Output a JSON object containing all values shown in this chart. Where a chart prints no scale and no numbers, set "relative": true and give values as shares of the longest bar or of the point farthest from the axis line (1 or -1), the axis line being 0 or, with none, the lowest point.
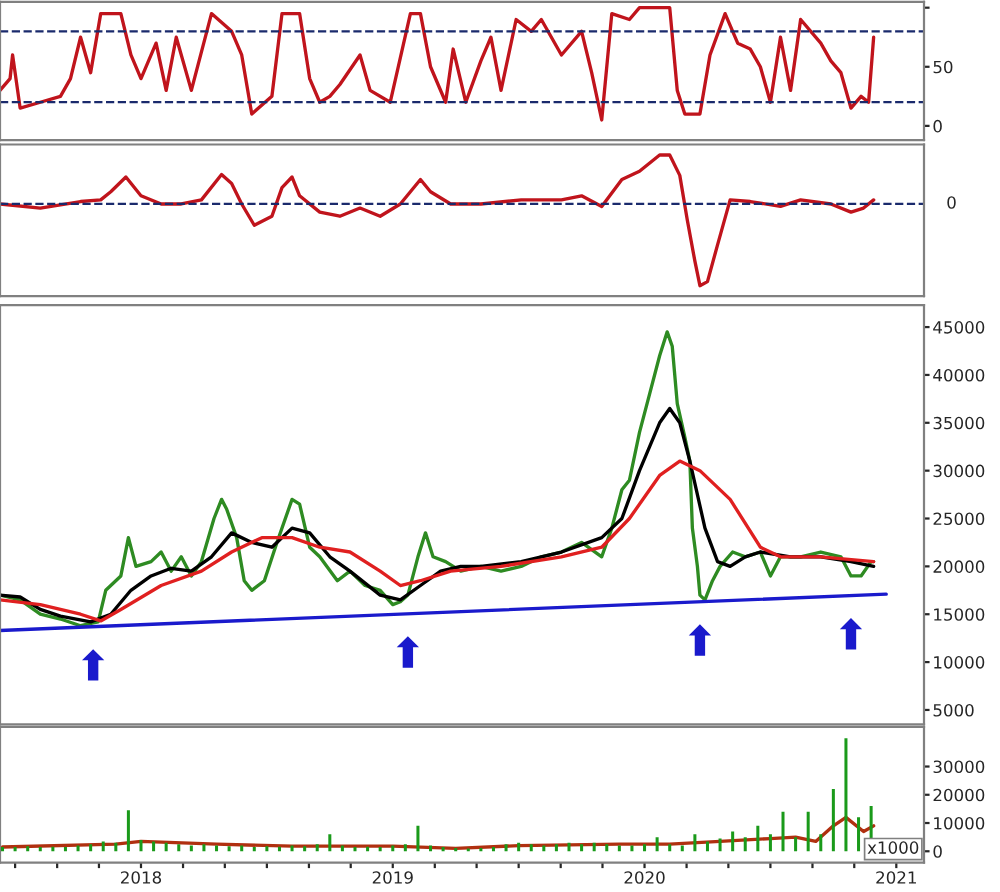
{
  "chart_data": [
    {
      "type": "line",
      "x": [
        2017.44,
        2017.48,
        2017.49,
        2017.52,
        2017.6,
        2017.68,
        2017.72,
        2017.76,
        2017.8,
        2017.84,
        2017.92,
        2017.96,
        2018.0,
        2018.06,
        2018.1,
        2018.14,
        2018.2,
        2018.28,
        2018.36,
        2018.4,
        2018.44,
        2018.52,
        2018.56,
        2018.63,
        2018.67,
        2018.71,
        2018.75,
        2018.79,
        2018.87,
        2018.91,
        2018.99,
        2019.07,
        2019.11,
        2019.15,
        2019.21,
        2019.24,
        2019.29,
        2019.35,
        2019.39,
        2019.43,
        2019.49,
        2019.55,
        2019.59,
        2019.67,
        2019.75,
        2019.79,
        2019.83,
        2019.87,
        2019.94,
        2019.98,
        2020.1,
        2020.13,
        2020.16,
        2020.22,
        2020.26,
        2020.32,
        2020.37,
        2020.42,
        2020.46,
        2020.5,
        2020.54,
        2020.58,
        2020.62,
        2020.7,
        2020.74,
        2020.78,
        2020.82,
        2020.86,
        2020.89,
        2020.91
      ],
      "series": [
        {
          "color": "#c0141c",
          "values": [
            30,
            40,
            60,
            15,
            20,
            25,
            40,
            75,
            45,
            95,
            95,
            60,
            40,
            70,
            30,
            75,
            30,
            95,
            80,
            60,
            10,
            25,
            95,
            95,
            40,
            20,
            25,
            35,
            60,
            30,
            20,
            95,
            95,
            50,
            20,
            65,
            20,
            55,
            75,
            30,
            90,
            80,
            90,
            60,
            80,
            45,
            5,
            95,
            90,
            100,
            100,
            30,
            10,
            10,
            60,
            95,
            70,
            65,
            50,
            20,
            75,
            30,
            90,
            70,
            55,
            45,
            15,
            25,
            20,
            75
          ]
        }
      ],
      "ylim": [
        -12,
        105
      ],
      "yticks": [
        0,
        50,
        {
          "value": 100,
          "label": null
        }
      ],
      "xlim": [
        2017.44,
        2021.11
      ],
      "tick_labels": "y",
      "ref_lines": [
        {
          "axis": "y",
          "value": 20,
          "color": "#1a2a6c",
          "line_style": "dashed"
        },
        {
          "axis": "y",
          "value": 80,
          "color": "#1a2a6c",
          "line_style": "dashed"
        }
      ]
    },
    {
      "type": "line",
      "relative": true,
      "x": [
        2017.44,
        2017.6,
        2017.76,
        2017.84,
        2017.88,
        2017.94,
        2018.0,
        2018.08,
        2018.16,
        2018.24,
        2018.32,
        2018.36,
        2018.4,
        2018.45,
        2018.52,
        2018.56,
        2018.6,
        2018.63,
        2018.71,
        2018.79,
        2018.87,
        2018.95,
        2019.03,
        2019.11,
        2019.15,
        2019.23,
        2019.35,
        2019.51,
        2019.67,
        2019.75,
        2019.83,
        2019.91,
        2019.98,
        2020.06,
        2020.1,
        2020.14,
        2020.17,
        2020.2,
        2020.22,
        2020.25,
        2020.29,
        2020.34,
        2020.42,
        2020.54,
        2020.62,
        2020.74,
        2020.82,
        2020.87,
        2020.91
      ],
      "series": [
        {
          "color": "#c0141c",
          "values": [
            0,
            -0.05,
            0.03,
            0.05,
            0.15,
            0.33,
            0.1,
            0,
            0,
            0.05,
            0.36,
            0.25,
            0,
            -0.26,
            -0.15,
            0.2,
            0.33,
            0.1,
            -0.1,
            -0.15,
            -0.05,
            -0.15,
            0,
            0.3,
            0.15,
            0,
            0,
            0.05,
            0.05,
            0.1,
            -0.03,
            0.3,
            0.4,
            0.6,
            0.6,
            0.35,
            -0.2,
            -0.7,
            -1,
            -0.95,
            -0.5,
            0.05,
            0.03,
            -0.03,
            0.05,
            0,
            -0.1,
            -0.05,
            0.05
          ]
        }
      ],
      "xlim": [
        2017.44,
        2021.11
      ],
      "tick_labels": false,
      "ref_lines": [
        {
          "axis": "y",
          "value": 0,
          "label": "0",
          "color": "#1a2a6c",
          "line_style": "dashed"
        }
      ]
    },
    {
      "type": "line",
      "xlim": [
        2017.44,
        2021.11
      ],
      "ylim": [
        3500,
        47300
      ],
      "yticks": [
        5000,
        10000,
        15000,
        20000,
        25000,
        30000,
        35000,
        40000,
        45000
      ],
      "tick_labels": "y",
      "series": [
        {
          "color": "#2e8b22",
          "x": [
            2017.44,
            2017.52,
            2017.6,
            2017.68,
            2017.76,
            2017.83,
            2017.86,
            2017.92,
            2017.95,
            2017.98,
            2018.04,
            2018.08,
            2018.12,
            2018.16,
            2018.2,
            2018.24,
            2018.29,
            2018.32,
            2018.34,
            2018.38,
            2018.41,
            2018.44,
            2018.49,
            2018.54,
            2018.6,
            2018.63,
            2018.67,
            2018.71,
            2018.78,
            2018.83,
            2018.89,
            2018.95,
            2019.0,
            2019.03,
            2019.06,
            2019.1,
            2019.13,
            2019.16,
            2019.21,
            2019.27,
            2019.35,
            2019.43,
            2019.51,
            2019.59,
            2019.67,
            2019.75,
            2019.83,
            2019.87,
            2019.91,
            2019.94,
            2019.98,
            2020.02,
            2020.06,
            2020.09,
            2020.11,
            2020.13,
            2020.16,
            2020.18,
            2020.19,
            2020.21,
            2020.22,
            2020.24,
            2020.27,
            2020.3,
            2020.35,
            2020.4,
            2020.46,
            2020.5,
            2020.54,
            2020.62,
            2020.7,
            2020.78,
            2020.82,
            2020.86,
            2020.9,
            2020.91
          ],
          "values": [
            17000,
            16500,
            15000,
            14500,
            13800,
            14200,
            17500,
            19000,
            23000,
            20000,
            20500,
            21500,
            19500,
            21000,
            19000,
            20500,
            25000,
            27000,
            26000,
            23000,
            18500,
            17500,
            18500,
            22500,
            27000,
            26500,
            22000,
            21000,
            18500,
            19500,
            18000,
            17500,
            16000,
            16300,
            17000,
            21000,
            23500,
            21000,
            20500,
            19500,
            20000,
            19500,
            20000,
            21000,
            21500,
            22500,
            21000,
            24000,
            28000,
            29000,
            34000,
            38000,
            42000,
            44500,
            43000,
            37000,
            33500,
            31000,
            24000,
            20000,
            17000,
            16500,
            18500,
            20000,
            21500,
            21000,
            21500,
            19000,
            21000,
            21000,
            21500,
            21000,
            19000,
            19000,
            20500,
            20500
          ]
        },
        {
          "color": "#000000",
          "x": [
            2017.44,
            2017.52,
            2017.6,
            2017.68,
            2017.8,
            2017.88,
            2017.96,
            2018.04,
            2018.12,
            2018.2,
            2018.28,
            2018.36,
            2018.44,
            2018.52,
            2018.6,
            2018.67,
            2018.75,
            2018.83,
            2018.95,
            2019.03,
            2019.11,
            2019.19,
            2019.27,
            2019.35,
            2019.51,
            2019.67,
            2019.83,
            2019.91,
            2019.98,
            2020.06,
            2020.1,
            2020.14,
            2020.18,
            2020.24,
            2020.29,
            2020.34,
            2020.4,
            2020.46,
            2020.58,
            2020.7,
            2020.82,
            2020.91
          ],
          "values": [
            17000,
            16800,
            15500,
            14800,
            14200,
            15000,
            17500,
            19000,
            19800,
            19500,
            21000,
            23500,
            22500,
            22000,
            24000,
            23500,
            21000,
            19500,
            17000,
            16500,
            18000,
            19500,
            20000,
            20000,
            20500,
            21500,
            23000,
            25000,
            30000,
            35000,
            36500,
            35000,
            31000,
            24000,
            20500,
            20000,
            21000,
            21500,
            21000,
            21000,
            20500,
            20000
          ]
        },
        {
          "color": "#e02020",
          "x": [
            2017.44,
            2017.6,
            2017.76,
            2017.84,
            2017.92,
            2018.08,
            2018.24,
            2018.36,
            2018.48,
            2018.6,
            2018.71,
            2018.83,
            2018.95,
            2019.03,
            2019.11,
            2019.23,
            2019.43,
            2019.67,
            2019.83,
            2019.94,
            2020.06,
            2020.14,
            2020.22,
            2020.34,
            2020.46,
            2020.54,
            2020.7,
            2020.91
          ],
          "values": [
            16500,
            16000,
            15000,
            14300,
            15500,
            18000,
            19500,
            21500,
            23000,
            23000,
            22000,
            21500,
            19500,
            18000,
            18500,
            19500,
            20000,
            21000,
            22000,
            25000,
            29500,
            31000,
            30000,
            27000,
            22000,
            21000,
            21000,
            20500
          ]
        },
        {
          "color": "#1a1acc",
          "x": [
            2017.44,
            2020.96
          ],
          "values": [
            13300,
            17100
          ]
        }
      ],
      "annotations": [
        {
          "text": "⬆",
          "x": 2017.81,
          "y": 13700
        },
        {
          "text": "⬆",
          "x": 2019.06,
          "y": 15050
        },
        {
          "text": "⬆",
          "x": 2020.22,
          "y": 16300
        },
        {
          "text": "⬆",
          "x": 2020.82,
          "y": 16950
        }
      ]
    },
    {
      "type": "bar",
      "xlim": [
        2017.44,
        2021.11
      ],
      "ylim": [
        -4000,
        44000
      ],
      "yticks": [
        0,
        10000,
        20000,
        30000
      ],
      "xticks": [
        {
          "value": 2017.5,
          "label": null
        },
        {
          "value": 2017.667,
          "label": null
        },
        {
          "value": 2017.833,
          "label": null
        },
        2018,
        {
          "value": 2018.167,
          "label": null
        },
        {
          "value": 2018.333,
          "label": null
        },
        {
          "value": 2018.5,
          "label": null
        },
        {
          "value": 2018.667,
          "label": null
        },
        {
          "value": 2018.833,
          "label": null
        },
        2019,
        {
          "value": 2019.167,
          "label": null
        },
        {
          "value": 2019.333,
          "label": null
        },
        {
          "value": 2019.5,
          "label": null
        },
        {
          "value": 2019.667,
          "label": null
        },
        {
          "value": 2019.833,
          "label": null
        },
        2020,
        {
          "value": 2020.167,
          "label": null
        },
        {
          "value": 2020.333,
          "label": null
        },
        {
          "value": 2020.5,
          "label": null
        },
        {
          "value": 2020.667,
          "label": null
        },
        {
          "value": 2020.833,
          "label": null
        },
        2021
      ],
      "annotations": [
        "x1000"
      ],
      "series": [
        {
          "color": "#1a9a1a",
          "x": [
            2017.45,
            2017.5,
            2017.55,
            2017.6,
            2017.65,
            2017.7,
            2017.75,
            2017.8,
            2017.85,
            2017.9,
            2017.95,
            2018.0,
            2018.05,
            2018.1,
            2018.15,
            2018.2,
            2018.25,
            2018.3,
            2018.35,
            2018.4,
            2018.45,
            2018.5,
            2018.55,
            2018.6,
            2018.65,
            2018.7,
            2018.75,
            2018.8,
            2018.85,
            2018.9,
            2018.95,
            2019.0,
            2019.05,
            2019.1,
            2019.15,
            2019.2,
            2019.25,
            2019.3,
            2019.35,
            2019.4,
            2019.45,
            2019.5,
            2019.55,
            2019.6,
            2019.65,
            2019.7,
            2019.75,
            2019.8,
            2019.85,
            2019.9,
            2019.95,
            2020.0,
            2020.05,
            2020.1,
            2020.15,
            2020.2,
            2020.25,
            2020.3,
            2020.35,
            2020.4,
            2020.45,
            2020.5,
            2020.55,
            2020.6,
            2020.65,
            2020.7,
            2020.75,
            2020.8,
            2020.85,
            2020.9
          ],
          "values": [
            1500,
            1500,
            1800,
            1500,
            1600,
            1500,
            2000,
            2500,
            3500,
            3000,
            14500,
            4000,
            3500,
            3000,
            2500,
            2000,
            2500,
            2000,
            1800,
            2000,
            1500,
            1800,
            1600,
            2000,
            1800,
            2500,
            6000,
            2000,
            1500,
            1600,
            1500,
            2000,
            2500,
            9000,
            2000,
            1500,
            1200,
            1000,
            1200,
            1500,
            2500,
            3000,
            2500,
            2000,
            2500,
            3000,
            2500,
            3000,
            2500,
            2000,
            2000,
            2500,
            5000,
            2500,
            2000,
            6000,
            3500,
            4500,
            7000,
            5000,
            9000,
            6000,
            14000,
            5000,
            14000,
            6000,
            22000,
            40000,
            12000,
            16000
          ]
        },
        {
          "type": "line",
          "color": "#b03010",
          "x": [
            2017.45,
            2017.9,
            2018.0,
            2018.3,
            2018.6,
            2019.0,
            2019.25,
            2019.5,
            2019.9,
            2020.1,
            2020.3,
            2020.5,
            2020.6,
            2020.68,
            2020.75,
            2020.8,
            2020.87,
            2020.91
          ],
          "values": [
            1500,
            2500,
            3500,
            2500,
            1800,
            1800,
            1000,
            2000,
            2500,
            2500,
            3500,
            4500,
            5000,
            3500,
            9000,
            12000,
            7000,
            9000
          ]
        }
      ]
    }
  ]
}
